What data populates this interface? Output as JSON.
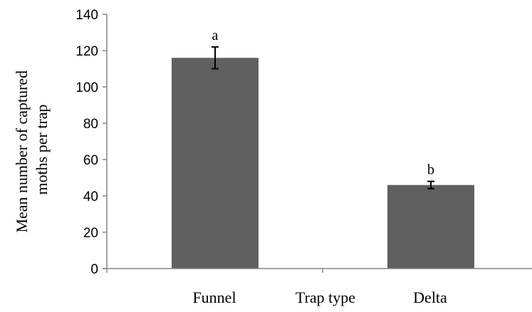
{
  "chart_data": {
    "type": "bar",
    "categories": [
      "Funnel",
      "Delta"
    ],
    "values": [
      116,
      46
    ],
    "errors": [
      6,
      2
    ],
    "letters": [
      "a",
      "b"
    ],
    "title": "",
    "xlabel": "Trap type",
    "ylabel": "Mean number of captured moths per trap",
    "ylabel_lines": [
      "Mean number of captured",
      "moths per trap"
    ],
    "ylim": [
      0,
      140
    ],
    "yticks": [
      0,
      20,
      40,
      60,
      80,
      100,
      120,
      140
    ],
    "grid": false,
    "legend": "none",
    "bar_color": "#606060",
    "axis_color": "#868686"
  }
}
